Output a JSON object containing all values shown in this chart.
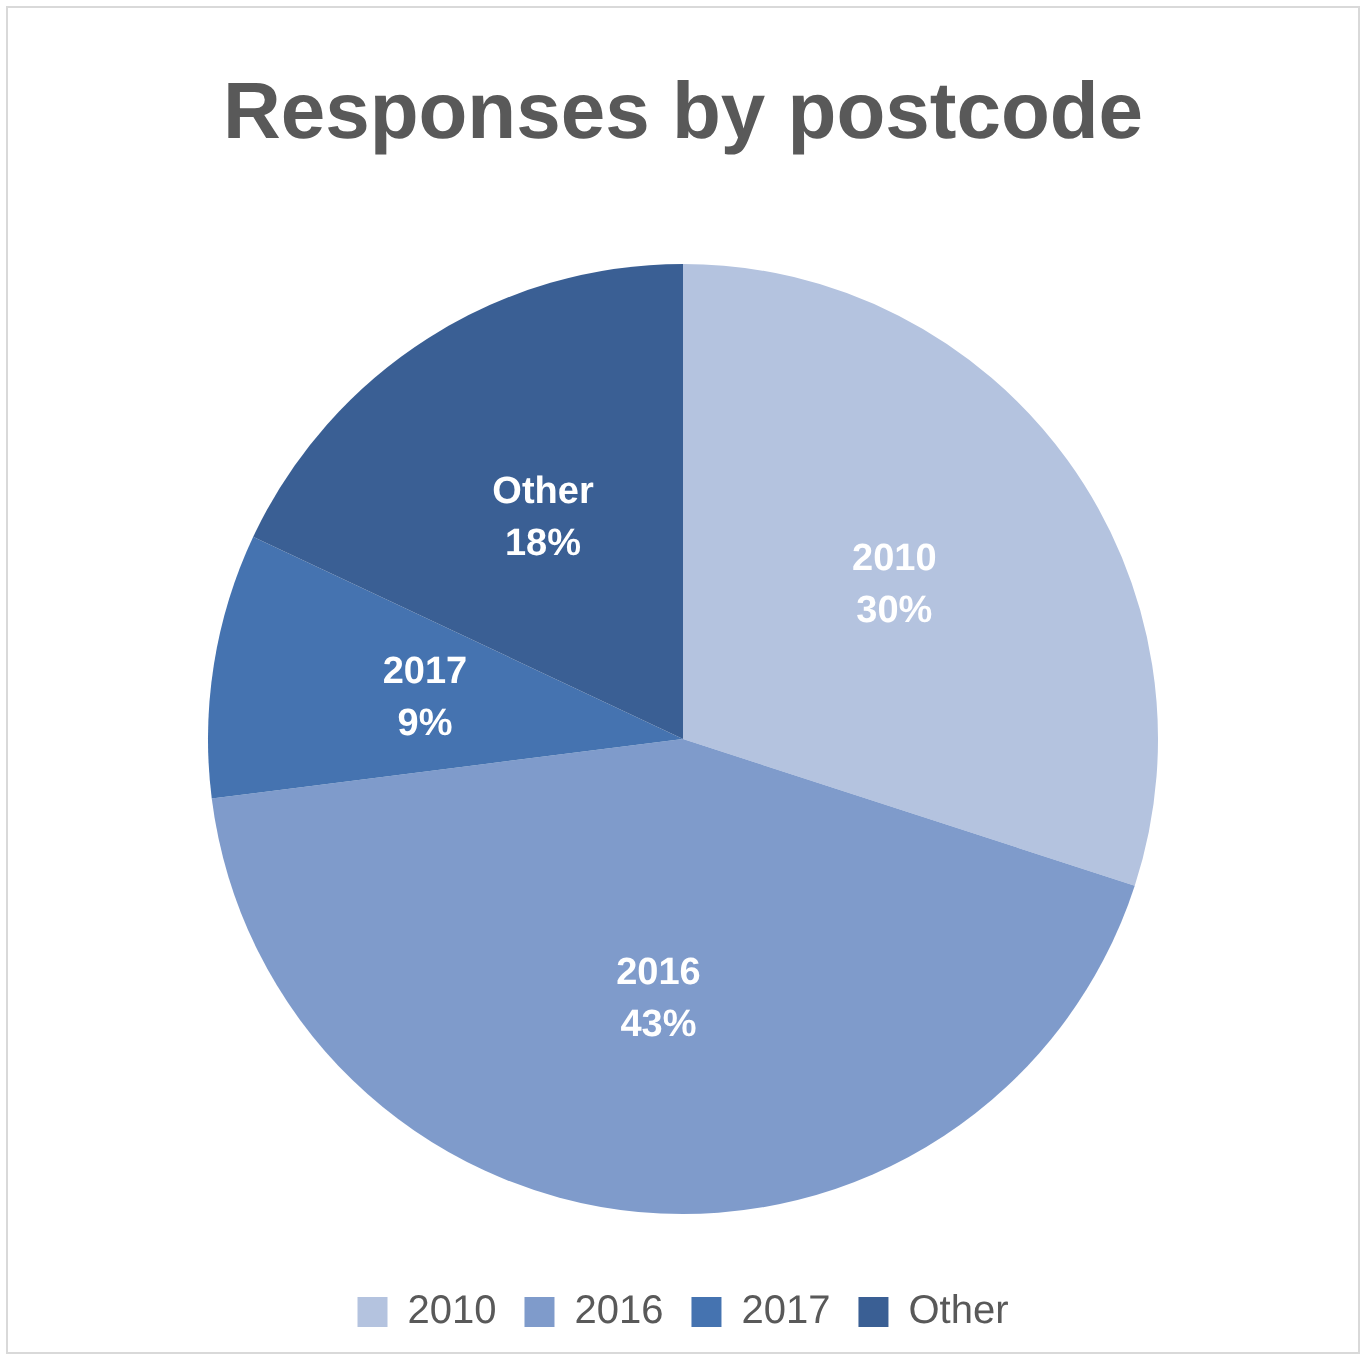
{
  "chart_data": {
    "type": "pie",
    "title": "Responses by postcode",
    "categories": [
      "2010",
      "2016",
      "2017",
      "Other"
    ],
    "values": [
      30,
      43,
      9,
      18
    ],
    "value_labels": [
      "30%",
      "43%",
      "9%",
      "18%"
    ],
    "colors": [
      "#b4c3df",
      "#7f9bcb",
      "#4573b0",
      "#3a5f94"
    ],
    "legend": "bottom"
  }
}
